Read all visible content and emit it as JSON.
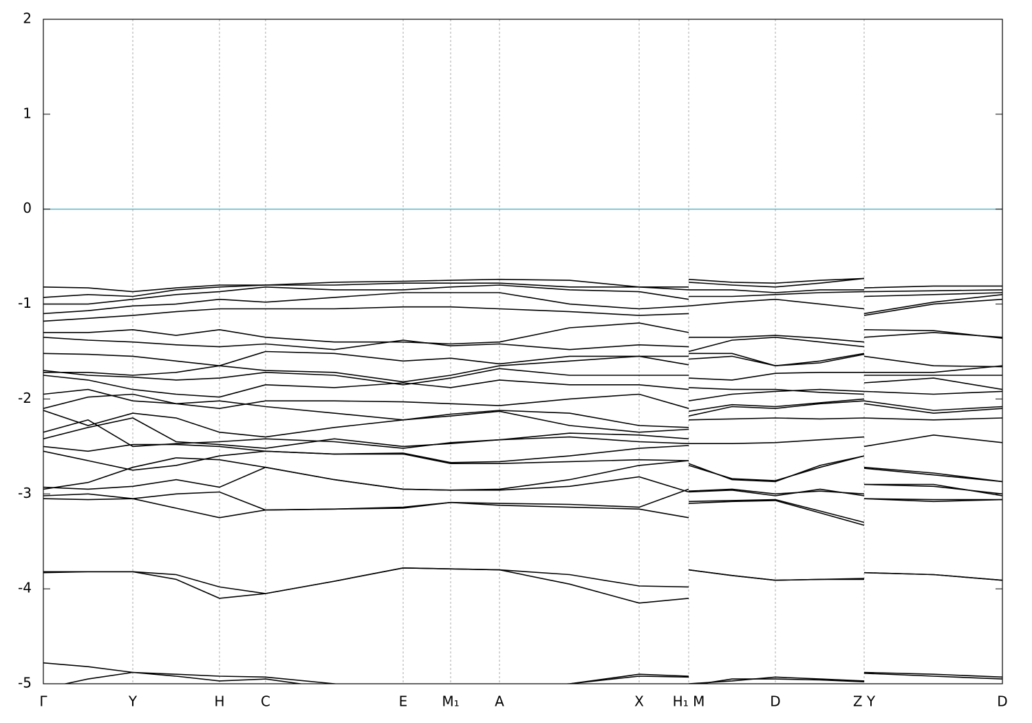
{
  "chart_data": {
    "type": "line",
    "color": "#000000",
    "grid": true,
    "hline": 0,
    "hline_color": "#5ab4c8",
    "xlim": [
      0,
      13.94
    ],
    "ylim": [
      -5,
      2
    ],
    "yticks": [
      -5,
      -4,
      -3,
      -2,
      -1,
      0,
      1,
      2
    ],
    "xticks": [
      {
        "value": 0,
        "label": "Γ"
      },
      {
        "value": 1.3,
        "label": "Y"
      },
      {
        "value": 2.56,
        "label": "H"
      },
      {
        "value": 3.23,
        "label": "C"
      },
      {
        "value": 5.23,
        "label": "E"
      },
      {
        "value": 5.92,
        "label": "M₁"
      },
      {
        "value": 6.63,
        "label": "A"
      },
      {
        "value": 8.66,
        "label": "X"
      },
      {
        "value": 9.38,
        "label": "H₁ M"
      },
      {
        "value": 10.64,
        "label": "D"
      },
      {
        "value": 11.93,
        "label": "Z Y"
      },
      {
        "value": 13.94,
        "label": "D"
      }
    ],
    "x": [
      0,
      0.65,
      1.3,
      1.93,
      2.56,
      3.23,
      4.23,
      5.23,
      5.92,
      6.63,
      7.65,
      8.66,
      9.38,
      9.38,
      9.38,
      10.01,
      10.64,
      11.29,
      11.93,
      11.93,
      11.93,
      12.94,
      13.94
    ],
    "series": [
      {
        "values": [
          -4.78,
          -4.82,
          -4.88,
          -4.9,
          -4.92,
          -4.93,
          -5.0,
          -5.1,
          -5.1,
          -5.05,
          -5.0,
          -4.9,
          -4.92,
          null,
          -5.0,
          -4.97,
          -4.93,
          -4.95,
          -4.97,
          null,
          -4.88,
          -4.9,
          -4.93
        ]
      },
      {
        "values": [
          -5.05,
          -4.95,
          -4.88,
          -4.92,
          -4.97,
          -4.95,
          -5.05,
          -5.1,
          -5.1,
          -5.05,
          -5.0,
          -4.92,
          -4.93,
          null,
          -5.02,
          -4.95,
          -4.95,
          -4.96,
          -4.98,
          null,
          -4.89,
          -4.92,
          -4.95
        ]
      },
      {
        "values": [
          -3.82,
          -3.82,
          -3.82,
          -3.9,
          -4.1,
          -4.05,
          -3.92,
          -3.78,
          -3.79,
          -3.8,
          -3.95,
          -4.15,
          -4.1,
          null,
          -3.8,
          -3.86,
          -3.91,
          -3.9,
          -3.9,
          null,
          -3.83,
          -3.85,
          -3.91
        ]
      },
      {
        "values": [
          -3.83,
          -3.82,
          -3.82,
          -3.85,
          -3.98,
          -4.05,
          -3.92,
          -3.78,
          -3.79,
          -3.8,
          -3.85,
          -3.97,
          -3.98,
          null,
          -3.8,
          -3.86,
          -3.91,
          -3.9,
          -3.89,
          null,
          -3.83,
          -3.85,
          -3.91
        ]
      },
      {
        "values": [
          -3.05,
          -3.06,
          -3.05,
          -3.15,
          -3.25,
          -3.17,
          -3.16,
          -3.15,
          -3.09,
          -3.12,
          -3.14,
          -3.16,
          -3.25,
          null,
          -3.1,
          -3.08,
          -3.07,
          -3.2,
          -3.33,
          null,
          -3.05,
          -3.08,
          -3.06
        ]
      },
      {
        "values": [
          -3.02,
          -3.0,
          -3.05,
          -3.0,
          -2.98,
          -3.17,
          -3.16,
          -3.14,
          -3.09,
          -3.1,
          -3.11,
          -3.14,
          -2.95,
          null,
          -3.08,
          -3.07,
          -3.06,
          -3.18,
          -3.3,
          null,
          -3.05,
          -3.06,
          -3.06
        ]
      },
      {
        "values": [
          -2.93,
          -2.95,
          -2.92,
          -2.85,
          -2.93,
          -2.72,
          -2.85,
          -2.95,
          -2.96,
          -2.96,
          -2.92,
          -2.82,
          -2.98,
          null,
          -2.97,
          -2.95,
          -3.0,
          -2.97,
          -3.0,
          null,
          -2.9,
          -2.92,
          -3.0
        ]
      },
      {
        "values": [
          -2.95,
          -2.88,
          -2.72,
          -2.62,
          -2.64,
          -2.72,
          -2.85,
          -2.95,
          -2.96,
          -2.95,
          -2.85,
          -2.7,
          -2.65,
          null,
          -2.98,
          -2.96,
          -3.02,
          -2.95,
          -3.02,
          null,
          -2.9,
          -2.9,
          -3.02
        ]
      },
      {
        "values": [
          -2.55,
          -2.65,
          -2.75,
          -2.7,
          -2.6,
          -2.55,
          -2.58,
          -2.58,
          -2.68,
          -2.68,
          -2.66,
          -2.64,
          -2.65,
          null,
          -2.68,
          -2.85,
          -2.87,
          -2.7,
          -2.6,
          null,
          -2.73,
          -2.8,
          -2.87
        ]
      },
      {
        "values": [
          -2.5,
          -2.55,
          -2.48,
          -2.48,
          -2.5,
          -2.55,
          -2.58,
          -2.57,
          -2.67,
          -2.66,
          -2.6,
          -2.52,
          -2.49,
          null,
          -2.7,
          -2.84,
          -2.86,
          -2.72,
          -2.6,
          null,
          -2.72,
          -2.78,
          -2.87
        ]
      },
      {
        "values": [
          -2.42,
          -2.3,
          -2.2,
          -2.45,
          -2.48,
          -2.52,
          -2.42,
          -2.5,
          -2.47,
          -2.43,
          -2.4,
          -2.45,
          -2.47,
          null,
          -2.47,
          -2.47,
          -2.46,
          -2.43,
          -2.4,
          null,
          -2.5,
          -2.38,
          -2.46
        ]
      },
      {
        "values": [
          -2.35,
          -2.22,
          -2.5,
          -2.47,
          -2.45,
          -2.42,
          -2.45,
          -2.52,
          -2.46,
          -2.43,
          -2.36,
          -2.38,
          -2.42,
          null,
          -2.22,
          -2.21,
          -2.2,
          -2.21,
          -2.2,
          null,
          -2.2,
          -2.22,
          -2.2
        ]
      },
      {
        "values": [
          -2.12,
          -2.28,
          -2.15,
          -2.2,
          -2.35,
          -2.4,
          -2.3,
          -2.22,
          -2.18,
          -2.13,
          -2.28,
          -2.35,
          -2.32,
          null,
          -2.18,
          -2.08,
          -2.1,
          -2.05,
          -2.02,
          null,
          -2.05,
          -2.15,
          -2.1
        ]
      },
      {
        "values": [
          -2.1,
          -1.98,
          -1.95,
          -2.05,
          -2.02,
          -2.08,
          -2.15,
          -2.22,
          -2.16,
          -2.12,
          -2.15,
          -2.28,
          -2.3,
          null,
          -2.13,
          -2.06,
          -2.08,
          -2.04,
          -2.0,
          null,
          -2.02,
          -2.12,
          -2.08
        ]
      },
      {
        "values": [
          -1.95,
          -1.9,
          -2.02,
          -2.05,
          -2.1,
          -2.02,
          -2.02,
          -2.03,
          -2.05,
          -2.07,
          -2.0,
          -1.95,
          -2.1,
          null,
          -2.02,
          -1.95,
          -1.92,
          -1.9,
          -1.92,
          null,
          -1.92,
          -1.95,
          -1.92
        ]
      },
      {
        "values": [
          -1.75,
          -1.8,
          -1.9,
          -1.95,
          -1.98,
          -1.85,
          -1.88,
          -1.83,
          -1.88,
          -1.8,
          -1.85,
          -1.85,
          -1.9,
          null,
          -1.88,
          -1.9,
          -1.9,
          -1.93,
          -1.95,
          null,
          -1.83,
          -1.78,
          -1.9
        ]
      },
      {
        "values": [
          -1.7,
          -1.75,
          -1.77,
          -1.8,
          -1.78,
          -1.72,
          -1.75,
          -1.85,
          -1.78,
          -1.68,
          -1.75,
          -1.75,
          -1.75,
          null,
          -1.78,
          -1.8,
          -1.73,
          -1.72,
          -1.72,
          null,
          -1.75,
          -1.75,
          -1.75
        ]
      },
      {
        "values": [
          -1.72,
          -1.72,
          -1.75,
          -1.72,
          -1.65,
          -1.7,
          -1.72,
          -1.82,
          -1.75,
          -1.65,
          -1.6,
          -1.55,
          -1.64,
          null,
          -1.58,
          -1.55,
          -1.65,
          -1.62,
          -1.53,
          null,
          -1.72,
          -1.72,
          -1.65
        ]
      },
      {
        "values": [
          -1.52,
          -1.53,
          -1.55,
          -1.6,
          -1.65,
          -1.5,
          -1.52,
          -1.6,
          -1.57,
          -1.63,
          -1.55,
          -1.55,
          -1.55,
          null,
          -1.52,
          -1.52,
          -1.65,
          -1.6,
          -1.52,
          null,
          -1.55,
          -1.65,
          -1.66
        ]
      },
      {
        "values": [
          -1.35,
          -1.38,
          -1.4,
          -1.43,
          -1.45,
          -1.42,
          -1.48,
          -1.38,
          -1.44,
          -1.42,
          -1.48,
          -1.43,
          -1.45,
          null,
          -1.5,
          -1.38,
          -1.35,
          -1.4,
          -1.45,
          null,
          -1.35,
          -1.3,
          -1.35
        ]
      },
      {
        "values": [
          -1.3,
          -1.3,
          -1.27,
          -1.33,
          -1.27,
          -1.35,
          -1.4,
          -1.4,
          -1.42,
          -1.4,
          -1.25,
          -1.2,
          -1.3,
          null,
          -1.35,
          -1.35,
          -1.33,
          -1.36,
          -1.4,
          null,
          -1.27,
          -1.28,
          -1.36
        ]
      },
      {
        "values": [
          -1.18,
          -1.15,
          -1.12,
          -1.08,
          -1.05,
          -1.05,
          -1.05,
          -1.03,
          -1.03,
          -1.05,
          -1.08,
          -1.12,
          -1.1,
          null,
          -1.02,
          -0.98,
          -0.95,
          -1.0,
          -1.05,
          null,
          -1.12,
          -1.0,
          -0.95
        ]
      },
      {
        "values": [
          -1.1,
          -1.07,
          -1.02,
          -1.0,
          -0.95,
          -0.98,
          -0.93,
          -0.88,
          -0.88,
          -0.88,
          -1.0,
          -1.05,
          -1.02,
          null,
          -0.92,
          -0.92,
          -0.9,
          -0.88,
          -0.87,
          null,
          -1.1,
          -0.98,
          -0.9
        ]
      },
      {
        "values": [
          -1.0,
          -1.0,
          -0.95,
          -0.9,
          -0.87,
          -0.82,
          -0.85,
          -0.85,
          -0.82,
          -0.8,
          -0.85,
          -0.87,
          -0.95,
          null,
          -0.85,
          -0.85,
          -0.88,
          -0.85,
          -0.85,
          null,
          -0.92,
          -0.9,
          -0.88
        ]
      },
      {
        "values": [
          -0.93,
          -0.9,
          -0.92,
          -0.85,
          -0.82,
          -0.8,
          -0.8,
          -0.78,
          -0.78,
          -0.78,
          -0.82,
          -0.82,
          -0.85,
          null,
          -0.77,
          -0.8,
          -0.82,
          -0.78,
          -0.73,
          null,
          -0.87,
          -0.86,
          -0.85
        ]
      },
      {
        "values": [
          -0.82,
          -0.83,
          -0.87,
          -0.83,
          -0.8,
          -0.8,
          -0.77,
          -0.76,
          -0.75,
          -0.74,
          -0.75,
          -0.82,
          -0.82,
          null,
          -0.74,
          -0.77,
          -0.78,
          -0.75,
          -0.73,
          null,
          -0.83,
          -0.81,
          -0.81
        ]
      }
    ]
  }
}
